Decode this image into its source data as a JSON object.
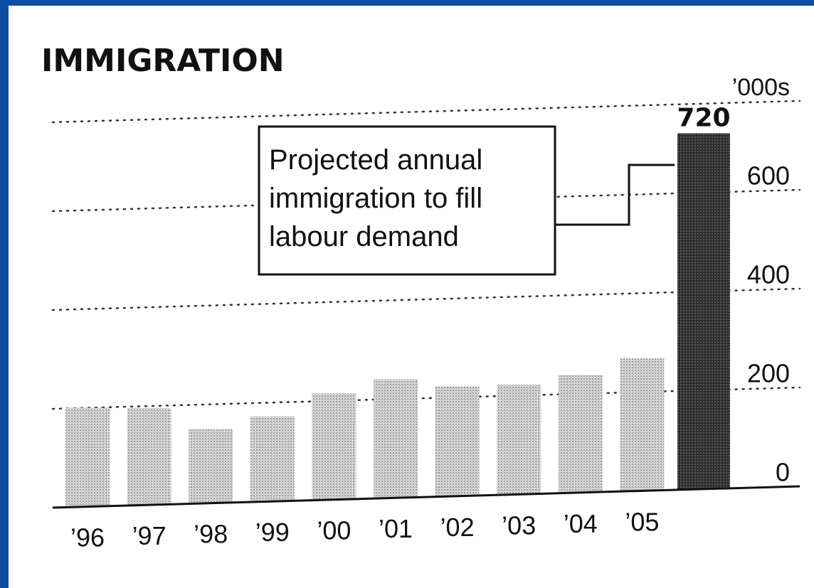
{
  "chart_data": {
    "type": "bar",
    "title": "IMMIGRATION",
    "unit_label": "’000s",
    "categories": [
      "’96",
      "’97",
      "’98",
      "’99",
      "’00",
      "’01",
      "’02",
      "’03",
      "’04",
      "’05",
      ""
    ],
    "values": [
      200,
      196,
      150,
      172,
      215,
      240,
      222,
      222,
      238,
      268,
      720
    ],
    "projected_index": 10,
    "projected_value_label": "720",
    "y_ticks": [
      0,
      200,
      400,
      600
    ],
    "y_tick_labels": [
      "0",
      "200",
      "400",
      "600"
    ],
    "ylim": [
      0,
      780
    ],
    "grid": "dotted",
    "annotation": {
      "lines": [
        "Projected annual",
        "immigration to fill",
        "labour demand"
      ]
    },
    "colors": {
      "historical_bar": "#bdbdbd",
      "projected_bar": "#3a3a3a",
      "text": "#111111",
      "background": "#ffffff",
      "border": "#0a4da3"
    }
  }
}
